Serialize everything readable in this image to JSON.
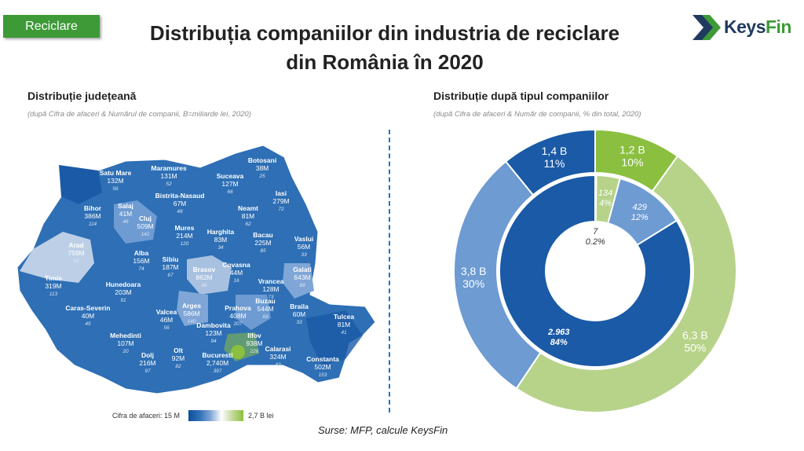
{
  "badge": "Reciclare",
  "title_line1": "Distribuția companiilor din industria de reciclare",
  "title_line2": "din România în 2020",
  "logo": {
    "text_a": "Keys",
    "text_b": "Fin"
  },
  "left": {
    "heading": "Distribuție județeană",
    "note": "(după Cifra de afaceri & Numărul de companii, B=miliarde lei, 2020)",
    "legend_label": "Cifra de afaceri: 15 M",
    "legend_max": "2,7 B lei"
  },
  "right": {
    "heading": "Distribuție după tipul companiilor",
    "note": "(după Cifra de afaceri & Număr de companii, % din total, 2020)"
  },
  "source": "Surse: MFP, calcule KeysFin",
  "colors": {
    "dark_blue": "#1a5aa6",
    "mid_blue": "#2e6fb5",
    "light_blue": "#6d9bd2",
    "green": "#8bbf3f",
    "light_green": "#b7d38a",
    "pale": "#bccfe6"
  },
  "chart_data": [
    {
      "type": "table",
      "columns": [
        "Județ",
        "Cifra de afaceri",
        "Număr companii"
      ],
      "rows": [
        {
          "name": "Satu Mare",
          "turnover": "132M",
          "count": "56"
        },
        {
          "name": "Maramures",
          "turnover": "131M",
          "count": "52"
        },
        {
          "name": "Botosani",
          "turnover": "38M",
          "count": "25"
        },
        {
          "name": "Suceava",
          "turnover": "127M",
          "count": "66"
        },
        {
          "name": "Salaj",
          "turnover": "41M",
          "count": "46"
        },
        {
          "name": "Bistrita-Nasaud",
          "turnover": "67M",
          "count": "48"
        },
        {
          "name": "Iasi",
          "turnover": "279M",
          "count": "72"
        },
        {
          "name": "Bihor",
          "turnover": "386M",
          "count": "114"
        },
        {
          "name": "Cluj",
          "turnover": "509M",
          "count": "142"
        },
        {
          "name": "Neamt",
          "turnover": "81M",
          "count": "62"
        },
        {
          "name": "Mures",
          "turnover": "214M",
          "count": "120"
        },
        {
          "name": "Harghita",
          "turnover": "83M",
          "count": "34"
        },
        {
          "name": "Bacau",
          "turnover": "225M",
          "count": "85"
        },
        {
          "name": "Vaslui",
          "turnover": "56M",
          "count": "33"
        },
        {
          "name": "Arad",
          "turnover": "759M",
          "count": "68"
        },
        {
          "name": "Alba",
          "turnover": "156M",
          "count": "74"
        },
        {
          "name": "Sibiu",
          "turnover": "187M",
          "count": "67"
        },
        {
          "name": "Brasov",
          "turnover": "862M",
          "count": "98"
        },
        {
          "name": "Covasna",
          "turnover": "44M",
          "count": "16"
        },
        {
          "name": "Vrancea",
          "turnover": "128M",
          "count": "73"
        },
        {
          "name": "Galati",
          "turnover": "643M",
          "count": "89"
        },
        {
          "name": "Timis",
          "turnover": "319M",
          "count": "113"
        },
        {
          "name": "Hunedoara",
          "turnover": "203M",
          "count": "91"
        },
        {
          "name": "Arges",
          "turnover": "586M",
          "count": "140"
        },
        {
          "name": "Buzau",
          "turnover": "544M",
          "count": "69"
        },
        {
          "name": "Braila",
          "turnover": "60M",
          "count": "33"
        },
        {
          "name": "Caras-Severin",
          "turnover": "40M",
          "count": "45"
        },
        {
          "name": "Valcea",
          "turnover": "46M",
          "count": "56"
        },
        {
          "name": "Prahova",
          "turnover": "408M",
          "count": "207"
        },
        {
          "name": "Tulcea",
          "turnover": "81M",
          "count": "41"
        },
        {
          "name": "Mehedinti",
          "turnover": "107M",
          "count": "20"
        },
        {
          "name": "Dambovita",
          "turnover": "123M",
          "count": "94"
        },
        {
          "name": "Ilfov",
          "turnover": "938M",
          "count": "226"
        },
        {
          "name": "Calarasi",
          "turnover": "324M",
          "count": "42"
        },
        {
          "name": "Dolj",
          "turnover": "216M",
          "count": "97"
        },
        {
          "name": "Olt",
          "turnover": "92M",
          "count": "82"
        },
        {
          "name": "Bucuresti",
          "turnover": "2,740M",
          "count": "397"
        },
        {
          "name": "Constanta",
          "turnover": "502M",
          "count": "153"
        }
      ]
    },
    {
      "type": "pie",
      "outer_ring": [
        {
          "label": "1,2 B",
          "pct": "10%",
          "value": 10,
          "color": "#8bbf3f"
        },
        {
          "label": "6,3 B",
          "pct": "50%",
          "value": 50,
          "color": "#b7d38a"
        },
        {
          "label": "3,8 B",
          "pct": "30%",
          "value": 30,
          "color": "#6d9bd2"
        },
        {
          "label": "1,4 B",
          "pct": "11%",
          "value": 11,
          "color": "#1a5aa6"
        }
      ],
      "inner_ring": [
        {
          "label": "7",
          "pct": "0.2%",
          "value": 0.2,
          "color": "#ffffff"
        },
        {
          "label": "134",
          "pct": "4%",
          "value": 4,
          "color": "#b7d38a"
        },
        {
          "label": "429",
          "pct": "12%",
          "value": 12,
          "color": "#6d9bd2"
        },
        {
          "label": "2.963",
          "pct": "84%",
          "value": 84,
          "color": "#1a5aa6"
        }
      ]
    }
  ]
}
